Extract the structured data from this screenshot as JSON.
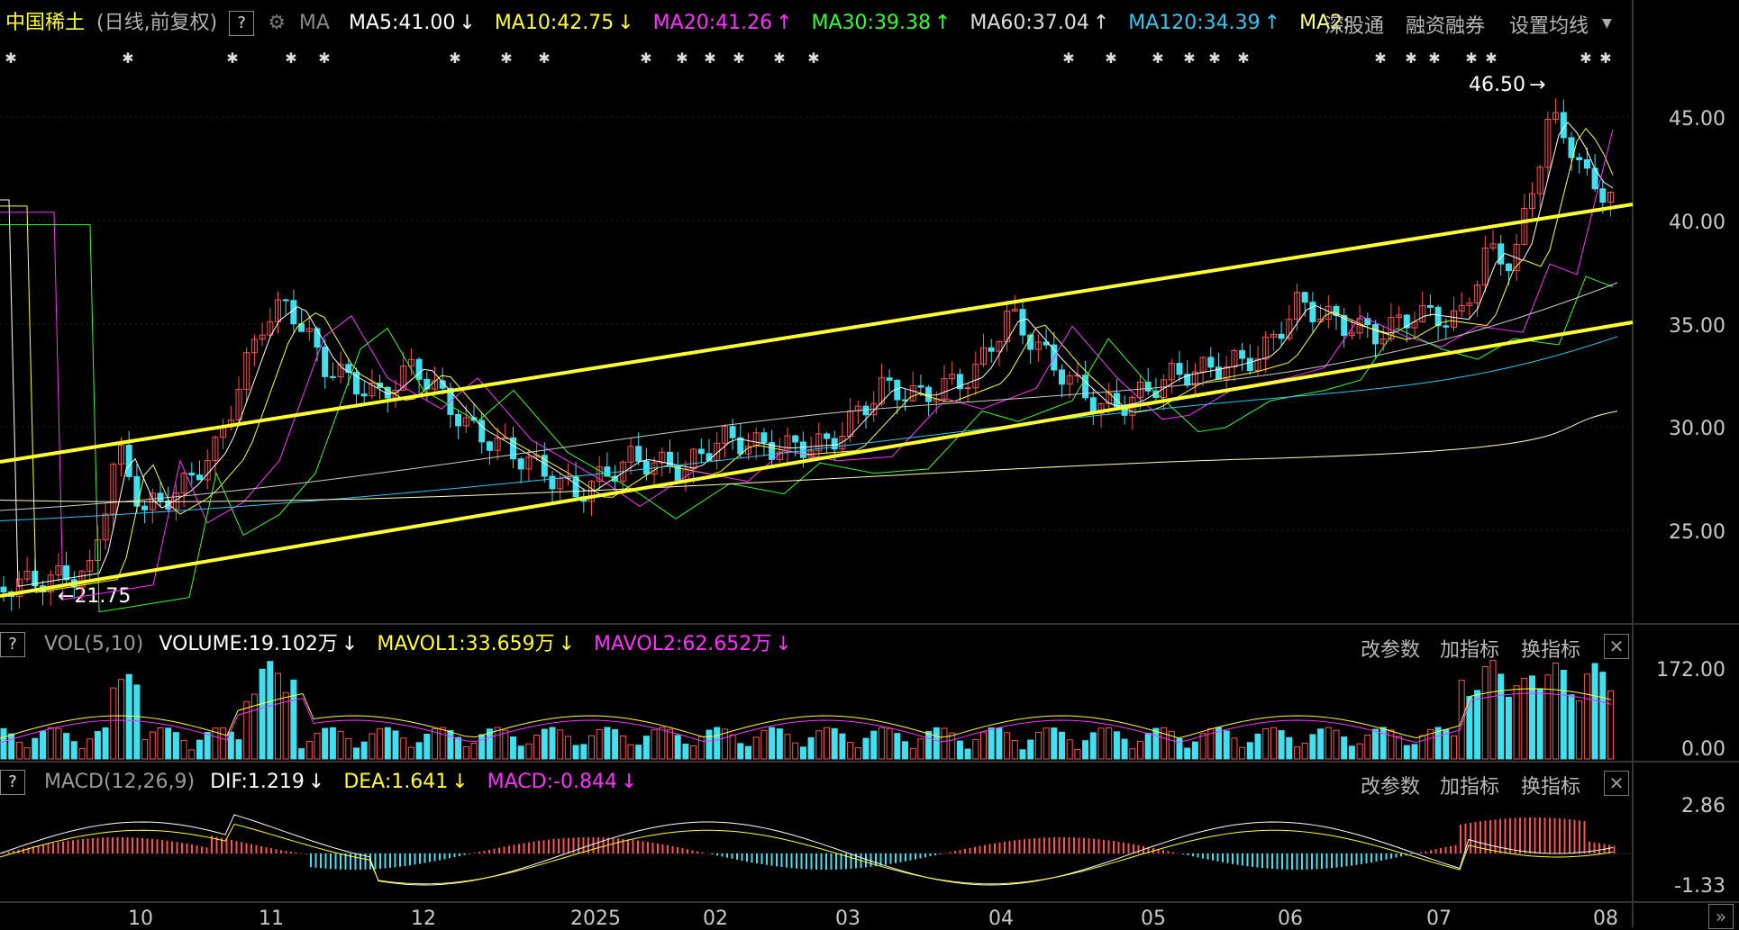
{
  "main_header": {
    "stock_name": "中国稀土",
    "period": "(日线,前复权)",
    "help": "?",
    "ma_label": "MA",
    "ma5": "MA5:41.00",
    "ma10": "MA10:42.75",
    "ma20": "MA20:41.26",
    "ma30": "MA30:39.38",
    "ma60": "MA60:37.04",
    "ma120": "MA120:34.39",
    "ma250": "MA2:",
    "btn_shenggutong": "深股通",
    "btn_rongzi": "融资融券",
    "btn_set_ma": "设置均线",
    "arrow_down": "↓",
    "arrow_up": "↑"
  },
  "price_axis": [
    "45.00",
    "40.00",
    "35.00",
    "30.00",
    "25.00"
  ],
  "price_marks": {
    "high": "46.50",
    "low": "21.75"
  },
  "vol_header": {
    "help": "?",
    "name": "VOL(5,10)",
    "volume": "VOLUME:19.102万",
    "mavol1": "MAVOL1:33.659万",
    "mavol2": "MAVOL2:62.652万",
    "arrow_down": "↓"
  },
  "vol_axis": [
    "172.00",
    "0.00"
  ],
  "macd_header": {
    "help": "?",
    "name": "MACD(12,26,9)",
    "dif": "DIF:1.219",
    "dea": "DEA:1.641",
    "macd": "MACD:-0.844",
    "arrow_down": "↓"
  },
  "macd_axis": [
    "2.86",
    "-1.33"
  ],
  "panel_buttons": {
    "modify": "改参数",
    "add": "加指标",
    "swap": "换指标",
    "close": "✕"
  },
  "x_axis": [
    "10",
    "11",
    "12",
    "2025",
    "02",
    "03",
    "04",
    "05",
    "06",
    "07",
    "08"
  ],
  "nav_button": "»",
  "colors": {
    "up": "#ff5050",
    "down": "#40e0f0",
    "ma5": "#ffffff",
    "ma10": "#ffff30",
    "ma20": "#ff30ff",
    "ma30": "#30ff30",
    "ma60": "#cccccc",
    "ma120": "#30c8f0",
    "trend": "#ffff30"
  }
}
